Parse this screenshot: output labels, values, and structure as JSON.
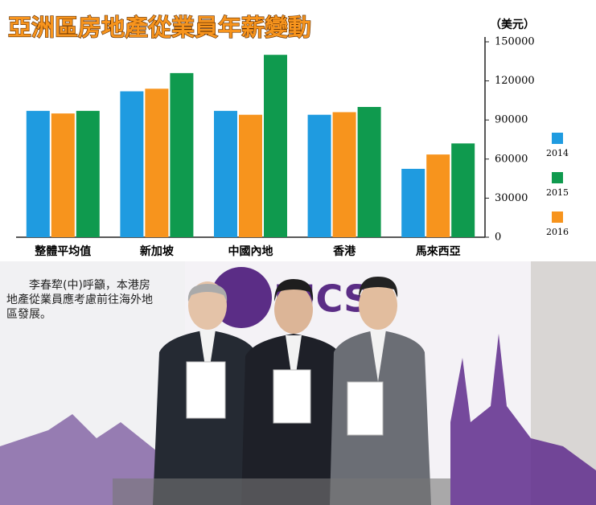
{
  "chart_data": {
    "type": "bar",
    "title": "亞洲區房地產從業員年薪變動",
    "y_label": "（美元）",
    "categories": [
      "整體平均值",
      "新加坡",
      "中國內地",
      "香港",
      "馬來西亞"
    ],
    "series": [
      {
        "name": "2014",
        "color": "#1f9be0",
        "values": [
          97000,
          112000,
          97000,
          94000,
          52500
        ]
      },
      {
        "name": "2015",
        "color": "#0f9a4e",
        "values": [
          97000,
          126000,
          140000,
          100000,
          72000
        ]
      },
      {
        "name": "2016",
        "color": "#f7941d",
        "values": [
          95000,
          114000,
          94000,
          96000,
          63500
        ]
      }
    ],
    "ylim": [
      0,
      150000
    ],
    "yticks": [
      0,
      30000,
      60000,
      90000,
      120000,
      150000
    ],
    "legend": "right"
  },
  "photo": {
    "caption": "李春犂(中)呼籲，本港房地產從業員應考慮前往海外地區發展。",
    "logo": "RICS"
  }
}
